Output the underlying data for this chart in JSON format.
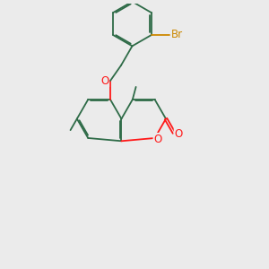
{
  "bg_color": "#ebebeb",
  "bond_color": "#2e6b47",
  "bond_lw": 1.3,
  "O_color": "#ff1818",
  "Br_color": "#cc8800",
  "font_size": 8.5,
  "xlim": [
    0,
    10
  ],
  "ylim": [
    0,
    10
  ]
}
